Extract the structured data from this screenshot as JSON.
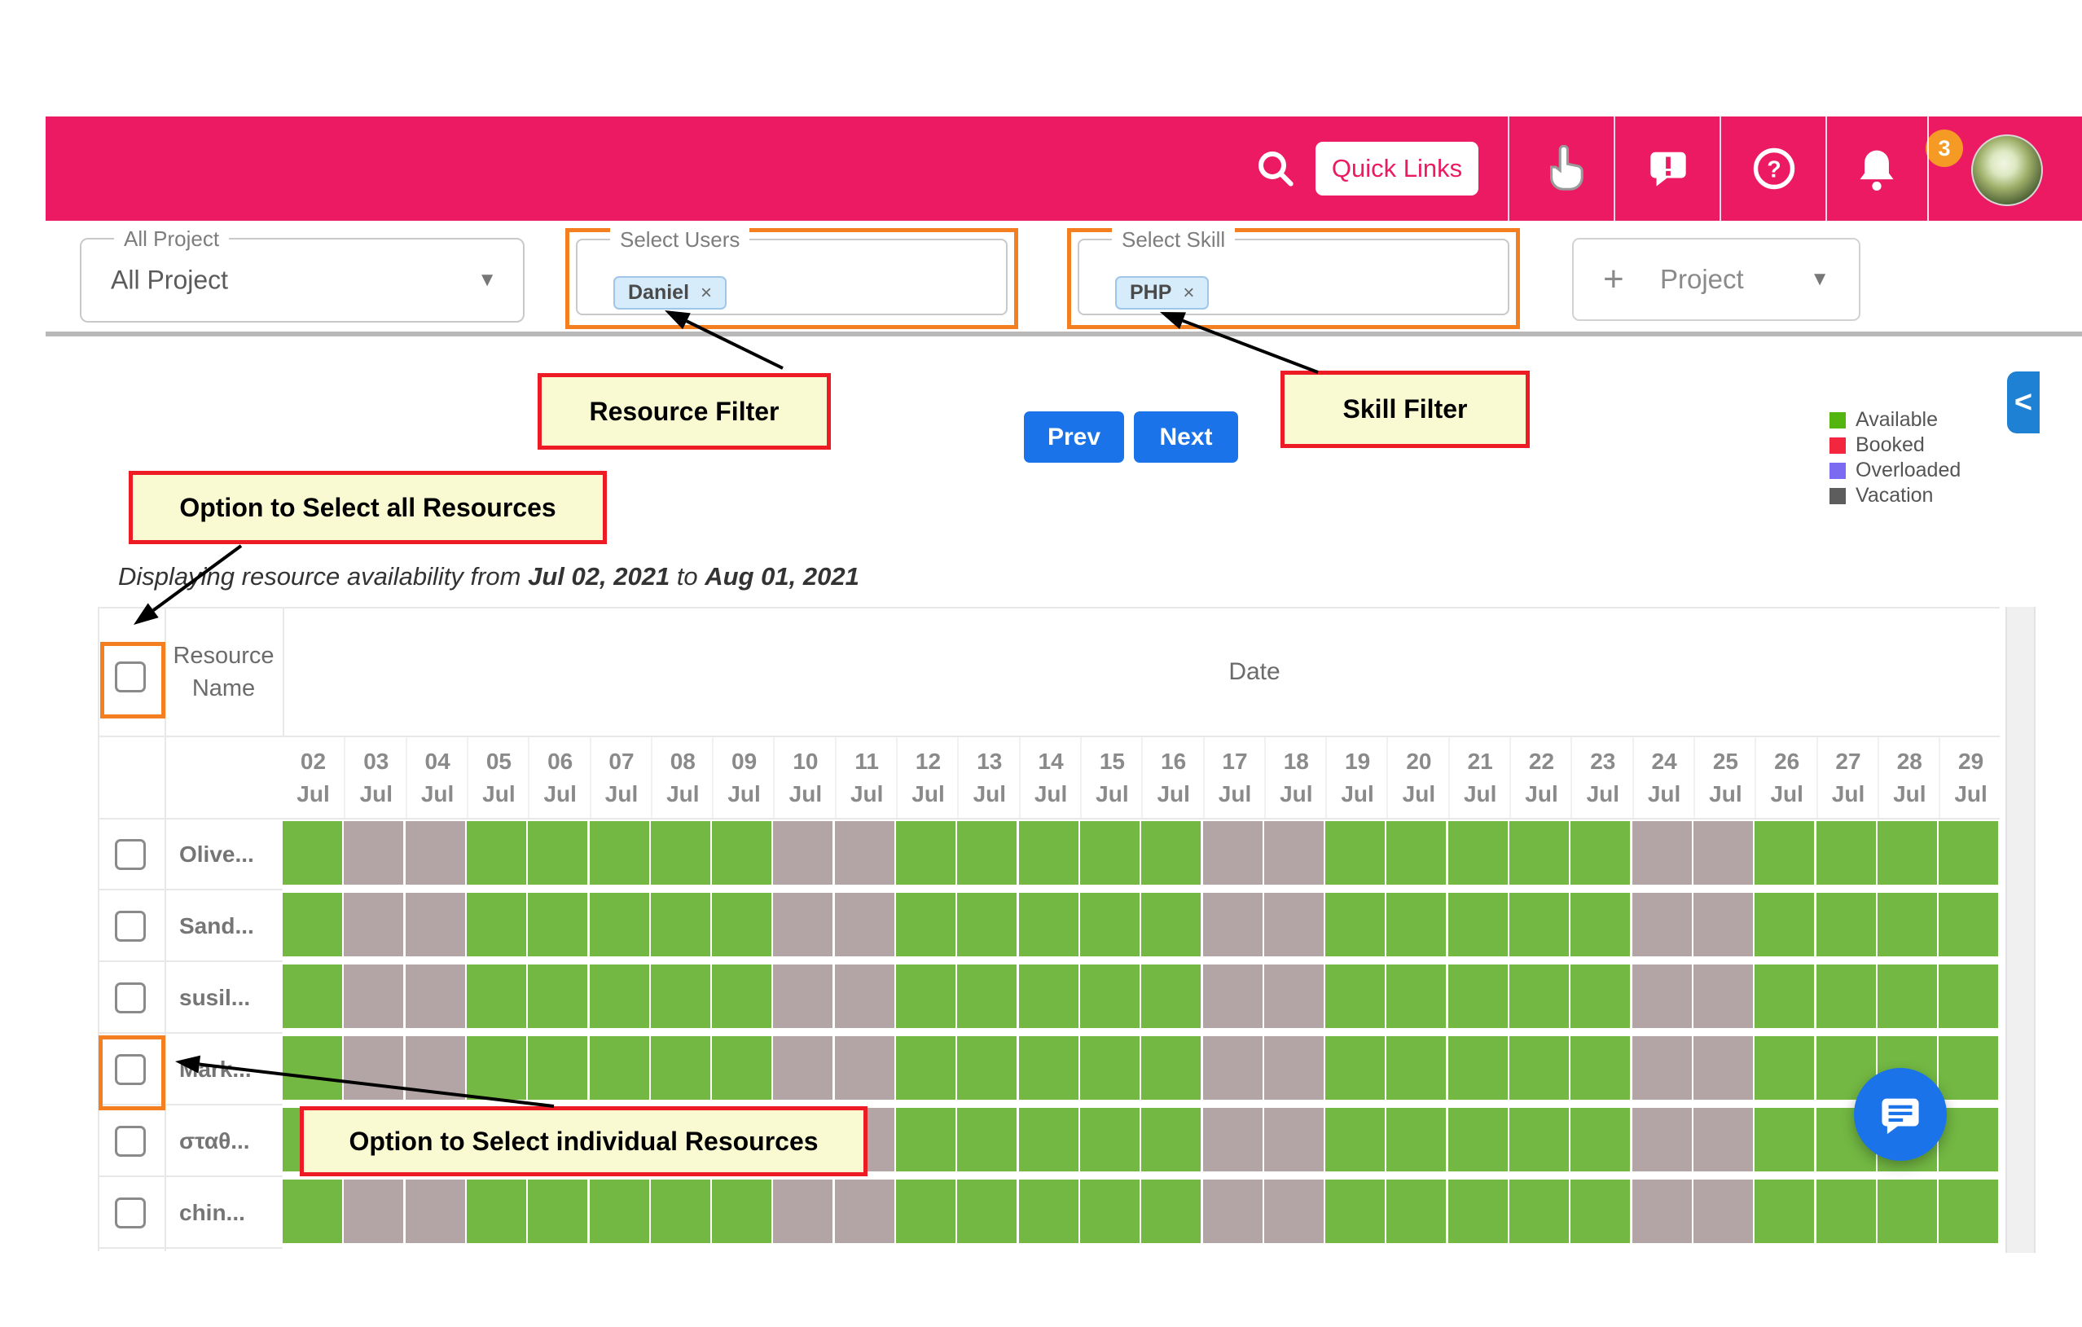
{
  "header": {
    "quick_links_label": "Quick Links",
    "notification_count": "3",
    "background_color": "#ec1a62"
  },
  "filters": {
    "project": {
      "label": "All Project",
      "value": "All Project"
    },
    "users": {
      "label": "Select Users",
      "chips": [
        {
          "text": "Daniel",
          "remove": "×"
        }
      ]
    },
    "skill": {
      "label": "Select Skill",
      "chips": [
        {
          "text": "PHP",
          "remove": "×"
        }
      ]
    },
    "add_project": {
      "plus": "+",
      "label": "Project"
    }
  },
  "toolbar": {
    "prev": "Prev",
    "next": "Next",
    "button_color": "#1a73e8"
  },
  "legend": [
    {
      "label": "Available",
      "color": "#54b510"
    },
    {
      "label": "Booked",
      "color": "#f4253e"
    },
    {
      "label": "Overloaded",
      "color": "#7a6bf2"
    },
    {
      "label": "Vacation",
      "color": "#5d5d5d"
    }
  ],
  "summary": {
    "prefix": "Displaying resource availability from",
    "from_date": "Jul 02, 2021",
    "middle": "to",
    "to_date": "Aug 01, 2021"
  },
  "annotations": {
    "resource_filter": "Resource Filter",
    "skill_filter": "Skill Filter",
    "select_all": "Option to Select all Resources",
    "select_individual": "Option to Select individual Resources",
    "box_fill": "#fafad2",
    "box_border": "#ed1c24",
    "highlight_border": "#f47f20"
  },
  "table": {
    "resource_header": "Resource Name",
    "date_header": "Date",
    "cell_colors": {
      "available": "#73b843",
      "weekend": "#b3a5a5"
    },
    "columns": [
      {
        "day": "02",
        "month": "Jul",
        "weekend": false
      },
      {
        "day": "03",
        "month": "Jul",
        "weekend": true
      },
      {
        "day": "04",
        "month": "Jul",
        "weekend": true
      },
      {
        "day": "05",
        "month": "Jul",
        "weekend": false
      },
      {
        "day": "06",
        "month": "Jul",
        "weekend": false
      },
      {
        "day": "07",
        "month": "Jul",
        "weekend": false
      },
      {
        "day": "08",
        "month": "Jul",
        "weekend": false
      },
      {
        "day": "09",
        "month": "Jul",
        "weekend": false
      },
      {
        "day": "10",
        "month": "Jul",
        "weekend": true
      },
      {
        "day": "11",
        "month": "Jul",
        "weekend": true
      },
      {
        "day": "12",
        "month": "Jul",
        "weekend": false
      },
      {
        "day": "13",
        "month": "Jul",
        "weekend": false
      },
      {
        "day": "14",
        "month": "Jul",
        "weekend": false
      },
      {
        "day": "15",
        "month": "Jul",
        "weekend": false
      },
      {
        "day": "16",
        "month": "Jul",
        "weekend": false
      },
      {
        "day": "17",
        "month": "Jul",
        "weekend": true
      },
      {
        "day": "18",
        "month": "Jul",
        "weekend": true
      },
      {
        "day": "19",
        "month": "Jul",
        "weekend": false
      },
      {
        "day": "20",
        "month": "Jul",
        "weekend": false
      },
      {
        "day": "21",
        "month": "Jul",
        "weekend": false
      },
      {
        "day": "22",
        "month": "Jul",
        "weekend": false
      },
      {
        "day": "23",
        "month": "Jul",
        "weekend": false
      },
      {
        "day": "24",
        "month": "Jul",
        "weekend": true
      },
      {
        "day": "25",
        "month": "Jul",
        "weekend": true
      },
      {
        "day": "26",
        "month": "Jul",
        "weekend": false
      },
      {
        "day": "27",
        "month": "Jul",
        "weekend": false
      },
      {
        "day": "28",
        "month": "Jul",
        "weekend": false
      },
      {
        "day": "29",
        "month": "Jul",
        "weekend": false
      }
    ],
    "resources": [
      {
        "name": "Olive..."
      },
      {
        "name": "Sand..."
      },
      {
        "name": "susil..."
      },
      {
        "name": "Mark..."
      },
      {
        "name": "σταθ..."
      },
      {
        "name": "chin..."
      }
    ]
  },
  "panel_toggle_glyph": "<"
}
